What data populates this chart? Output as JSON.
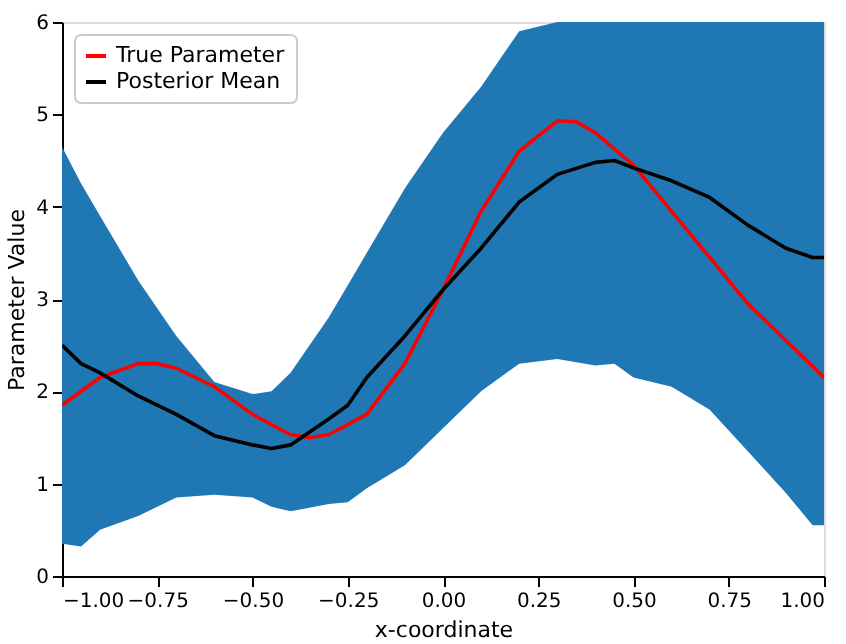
{
  "chart_data": {
    "type": "line",
    "xlabel": "x-coordinate",
    "ylabel": "Parameter Value",
    "xlim": [
      -1,
      1
    ],
    "ylim": [
      0,
      6
    ],
    "xticks": [
      {
        "value": -1,
        "label": "−1.00"
      },
      {
        "value": -0.75,
        "label": "−0.75"
      },
      {
        "value": -0.5,
        "label": "−0.50"
      },
      {
        "value": -0.25,
        "label": "−0.25"
      },
      {
        "value": 0,
        "label": "0.00"
      },
      {
        "value": 0.25,
        "label": "0.25"
      },
      {
        "value": 0.5,
        "label": "0.50"
      },
      {
        "value": 0.75,
        "label": "0.75"
      },
      {
        "value": 1,
        "label": "1.00"
      }
    ],
    "yticks": [
      0,
      1,
      2,
      3,
      4,
      5,
      6
    ],
    "grid": false,
    "legend": "top left",
    "series": [
      {
        "name": "True Parameter",
        "color": "#ff0000",
        "x": [
          -1,
          -0.9,
          -0.8,
          -0.75,
          -0.7,
          -0.6,
          -0.5,
          -0.4,
          -0.35,
          -0.3,
          -0.2,
          -0.1,
          0,
          0.1,
          0.2,
          0.3,
          0.35,
          0.4,
          0.5,
          0.6,
          0.7,
          0.8,
          0.9,
          1
        ],
        "values": [
          1.85,
          2.15,
          2.3,
          2.3,
          2.25,
          2.05,
          1.75,
          1.53,
          1.5,
          1.53,
          1.75,
          2.3,
          3.1,
          3.95,
          4.6,
          4.93,
          4.92,
          4.8,
          4.45,
          3.95,
          3.45,
          2.95,
          2.55,
          2.15
        ]
      },
      {
        "name": "Posterior Mean",
        "color": "#000000",
        "x": [
          -1,
          -0.95,
          -0.9,
          -0.8,
          -0.7,
          -0.6,
          -0.5,
          -0.45,
          -0.4,
          -0.3,
          -0.25,
          -0.2,
          -0.1,
          0,
          0.1,
          0.2,
          0.3,
          0.4,
          0.45,
          0.5,
          0.6,
          0.7,
          0.8,
          0.9,
          0.97,
          1
        ],
        "values": [
          2.5,
          2.3,
          2.2,
          1.95,
          1.75,
          1.52,
          1.42,
          1.38,
          1.42,
          1.7,
          1.85,
          2.15,
          2.6,
          3.1,
          3.55,
          4.05,
          4.35,
          4.48,
          4.5,
          4.42,
          4.28,
          4.1,
          3.8,
          3.55,
          3.45,
          3.45
        ],
        "lower": [
          0.35,
          0.32,
          0.5,
          0.65,
          0.85,
          0.88,
          0.85,
          0.75,
          0.7,
          0.78,
          0.8,
          0.95,
          1.2,
          1.6,
          2.0,
          2.3,
          2.35,
          2.28,
          2.3,
          2.15,
          2.05,
          1.8,
          1.35,
          0.9,
          0.55,
          0.55
        ],
        "upper": [
          4.65,
          4.25,
          3.9,
          3.2,
          2.6,
          2.1,
          1.97,
          2.0,
          2.2,
          2.8,
          3.15,
          3.5,
          4.2,
          4.8,
          5.3,
          5.9,
          6,
          6,
          6,
          6,
          6,
          6,
          6,
          6,
          6,
          6
        ]
      }
    ]
  }
}
